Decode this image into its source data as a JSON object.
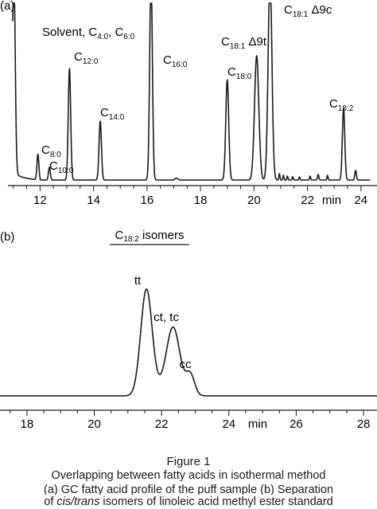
{
  "figure": {
    "caption_title": "Figure 1",
    "caption_line1": "Overlapping between fatty acids in isothermal method",
    "caption_line2": "(a) GC fatty acid profile of the puff sample (b) Separation",
    "caption_line3_pre": "of ",
    "caption_line3_em": "cis/trans",
    "caption_line3_post": " isomers of linoleic acid methyl ester standard"
  },
  "chart_data": [
    {
      "type": "line",
      "panel_label": "(a)",
      "xlabel": "min",
      "xlim": [
        10.8,
        24.6
      ],
      "x_ticks_major": [
        12,
        14,
        16,
        18,
        20,
        22,
        24
      ],
      "grid": false,
      "peaks": [
        {
          "x": 11.02,
          "height": 1.3,
          "width": 0.05,
          "label_main": "Solvent, C",
          "label_sub1": "4:0",
          "label_mid": ", C",
          "label_sub2": "6:0"
        },
        {
          "x": 11.92,
          "height": 0.16,
          "width": 0.035,
          "label_main": "C",
          "label_sub": "8:0"
        },
        {
          "x": 12.35,
          "height": 0.08,
          "width": 0.035,
          "label_main": "C",
          "label_sub": "10:0"
        },
        {
          "x": 13.1,
          "height": 0.7,
          "width": 0.045,
          "label_main": "C",
          "label_sub": "12:0"
        },
        {
          "x": 14.25,
          "height": 0.37,
          "width": 0.045,
          "label_main": "C",
          "label_sub": "14:0"
        },
        {
          "x": 16.15,
          "height": 1.3,
          "width": 0.05,
          "label_main": "C",
          "label_sub": "16:0"
        },
        {
          "x": 19.0,
          "height": 0.63,
          "width": 0.055,
          "label_main": "C",
          "label_sub": "18:0"
        },
        {
          "x": 20.1,
          "height": 0.78,
          "width": 0.08,
          "label_main": "C",
          "label_sub": "18:1",
          "label_after": " Δ9t"
        },
        {
          "x": 20.6,
          "height": 1.3,
          "width": 0.07,
          "label_main": "C",
          "label_sub": "18:1",
          "label_after": " Δ9c"
        },
        {
          "x": 23.35,
          "height": 0.45,
          "width": 0.045,
          "label_main": "C",
          "label_sub": "18:2"
        }
      ]
    },
    {
      "type": "line",
      "panel_label": "(b)",
      "title_main": "C",
      "title_sub": "18:2",
      "title_after": " isomers",
      "xlabel": "min",
      "xlim": [
        17.2,
        28.4
      ],
      "x_ticks_major": [
        18,
        20,
        22,
        24,
        26,
        28
      ],
      "grid": false,
      "peaks": [
        {
          "x": 21.55,
          "height": 1.0,
          "width": 0.17,
          "label": "tt"
        },
        {
          "x": 22.35,
          "height": 0.62,
          "width": 0.2,
          "label": "ct, tc"
        },
        {
          "x": 22.85,
          "height": 0.2,
          "width": 0.13,
          "label": "cc"
        }
      ]
    }
  ]
}
